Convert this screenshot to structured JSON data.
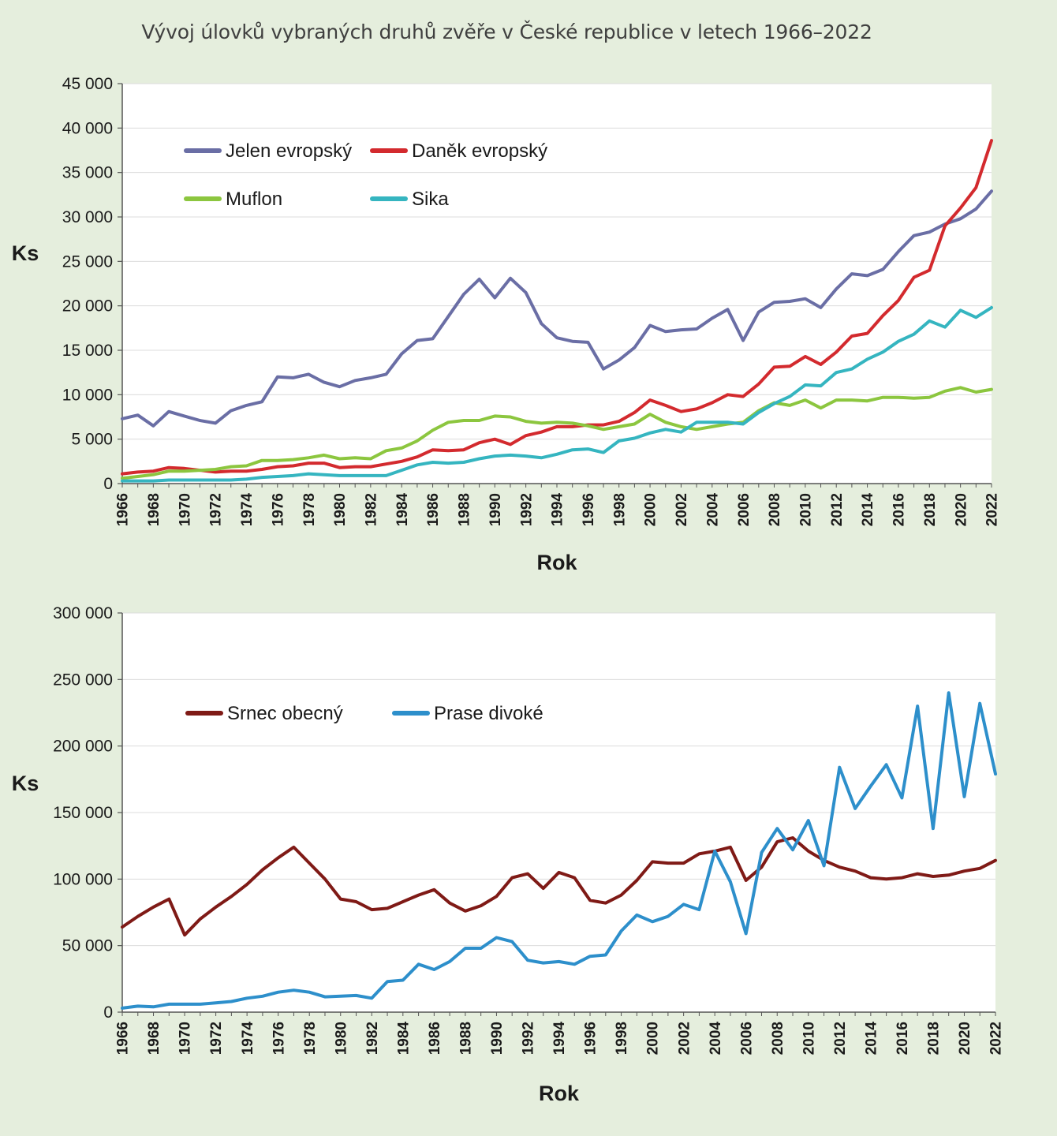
{
  "title": "Vývoj úlovků vybraných druhů zvěře v České republice v letech 1966–2022",
  "chart_data": [
    {
      "type": "line",
      "title": "",
      "xlabel": "Rok",
      "ylabel": "Ks",
      "ylim": [
        0,
        45000
      ],
      "yticks": [
        0,
        5000,
        10000,
        15000,
        20000,
        25000,
        30000,
        35000,
        40000,
        45000
      ],
      "ytick_labels": [
        "0",
        "5 000",
        "10 000",
        "15 000",
        "20 000",
        "25 000",
        "30 000",
        "35 000",
        "40 000",
        "45 000"
      ],
      "xticks": [
        "1966",
        "1968",
        "1970",
        "1972",
        "1974",
        "1976",
        "1978",
        "1980",
        "1982",
        "1984",
        "1986",
        "1988",
        "1990",
        "1992",
        "1994",
        "1996",
        "1998",
        "2000",
        "2002",
        "2004",
        "2006",
        "2008",
        "2010",
        "2012",
        "2014",
        "2016",
        "2018",
        "2020",
        "2022"
      ],
      "grid": true,
      "legend_position": "top-left",
      "x_start": 1966,
      "series": [
        {
          "name": "Jelen evropský",
          "color": "#6a6ea5",
          "values": [
            7300,
            7700,
            6500,
            8100,
            7600,
            7100,
            6800,
            8200,
            8800,
            9200,
            12000,
            11900,
            12300,
            11400,
            10900,
            11600,
            11900,
            12300,
            14600,
            16100,
            16300,
            18800,
            21300,
            23000,
            20900,
            23100,
            21500,
            18000,
            16400,
            16000,
            15900,
            12900,
            13900,
            15300,
            17800,
            17100,
            17300,
            17400,
            18600,
            19600,
            16100,
            19300,
            20400,
            20500,
            20800,
            19800,
            21900,
            23600,
            23400,
            24100,
            26100,
            27900,
            28300,
            29200,
            29800,
            30900,
            32900
          ]
        },
        {
          "name": "Daněk evropský",
          "color": "#d32a2e",
          "values": [
            1100,
            1300,
            1400,
            1800,
            1700,
            1500,
            1300,
            1400,
            1400,
            1600,
            1900,
            2000,
            2300,
            2300,
            1800,
            1900,
            1900,
            2200,
            2500,
            3000,
            3800,
            3700,
            3800,
            4600,
            5000,
            4400,
            5400,
            5800,
            6400,
            6400,
            6600,
            6600,
            7000,
            8000,
            9400,
            8800,
            8100,
            8400,
            9100,
            10000,
            9800,
            11200,
            13100,
            13200,
            14300,
            13400,
            14800,
            16600,
            16900,
            18900,
            20600,
            23200,
            24000,
            29000,
            31000,
            33300,
            38600
          ]
        },
        {
          "name": "Muflon",
          "color": "#8cc63f",
          "values": [
            600,
            800,
            1000,
            1400,
            1400,
            1500,
            1600,
            1900,
            2000,
            2600,
            2600,
            2700,
            2900,
            3200,
            2800,
            2900,
            2800,
            3700,
            4000,
            4800,
            6000,
            6900,
            7100,
            7100,
            7600,
            7500,
            7000,
            6800,
            6900,
            6800,
            6500,
            6100,
            6400,
            6700,
            7800,
            6900,
            6400,
            6100,
            6400,
            6700,
            6900,
            8200,
            9100,
            8800,
            9400,
            8500,
            9400,
            9400,
            9300,
            9700,
            9700,
            9600,
            9700,
            10400,
            10800,
            10300,
            10600
          ]
        },
        {
          "name": "Sika",
          "color": "#35b5c0",
          "values": [
            300,
            300,
            300,
            400,
            400,
            400,
            400,
            400,
            500,
            700,
            800,
            900,
            1100,
            1000,
            900,
            900,
            900,
            900,
            1500,
            2100,
            2400,
            2300,
            2400,
            2800,
            3100,
            3200,
            3100,
            2900,
            3300,
            3800,
            3900,
            3500,
            4800,
            5100,
            5700,
            6100,
            5800,
            6900,
            6900,
            6900,
            6700,
            8000,
            9000,
            9800,
            11100,
            11000,
            12500,
            12900,
            14000,
            14800,
            16000,
            16800,
            18300,
            17600,
            19500,
            18700,
            19800
          ]
        }
      ]
    },
    {
      "type": "line",
      "title": "",
      "xlabel": "Rok",
      "ylabel": "Ks",
      "ylim": [
        0,
        300000
      ],
      "yticks": [
        0,
        50000,
        100000,
        150000,
        200000,
        250000,
        300000
      ],
      "ytick_labels": [
        "0",
        "50 000",
        "100 000",
        "150 000",
        "200 000",
        "250 000",
        "300 000"
      ],
      "xticks": [
        "1966",
        "1968",
        "1970",
        "1972",
        "1974",
        "1976",
        "1978",
        "1980",
        "1982",
        "1984",
        "1986",
        "1988",
        "1990",
        "1992",
        "1994",
        "1996",
        "1998",
        "2000",
        "2002",
        "2004",
        "2006",
        "2008",
        "2010",
        "2012",
        "2014",
        "2016",
        "2018",
        "2020",
        "2022"
      ],
      "grid": true,
      "legend_position": "top-left",
      "x_start": 1966,
      "series": [
        {
          "name": "Srnec obecný",
          "color": "#7f1a16",
          "values": [
            64000,
            72000,
            79000,
            85000,
            58000,
            70000,
            79000,
            87000,
            96000,
            107000,
            116000,
            124000,
            112000,
            100000,
            85000,
            83000,
            77000,
            78000,
            83000,
            88000,
            92000,
            82000,
            76000,
            80000,
            87000,
            101000,
            104000,
            93000,
            105000,
            101000,
            84000,
            82000,
            88000,
            99000,
            113000,
            112000,
            112000,
            119000,
            121000,
            124000,
            99000,
            109000,
            128000,
            131000,
            121000,
            114000,
            109000,
            106000,
            101000,
            100000,
            101000,
            104000,
            102000,
            103000,
            106000,
            108000,
            114000
          ]
        },
        {
          "name": "Prase divoké",
          "color": "#2d8fcb",
          "values": [
            3000,
            4500,
            4000,
            6000,
            6000,
            6000,
            7000,
            8000,
            10500,
            12000,
            15000,
            16500,
            15000,
            11500,
            12000,
            12500,
            10500,
            23000,
            24000,
            36000,
            32000,
            38000,
            48000,
            48000,
            56000,
            53000,
            39000,
            37000,
            38000,
            36000,
            42000,
            43000,
            61000,
            73000,
            68000,
            72000,
            81000,
            77000,
            121000,
            98000,
            59000,
            120000,
            138000,
            122000,
            144000,
            110000,
            184000,
            153000,
            170000,
            186000,
            161000,
            230000,
            138000,
            240000,
            162000,
            232000,
            179000
          ]
        }
      ]
    }
  ]
}
